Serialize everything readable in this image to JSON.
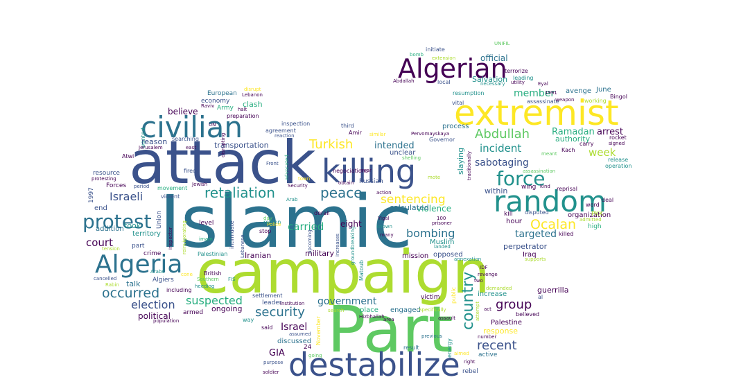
{
  "palette": {
    "purple": "#440154",
    "indigo": "#3b528b",
    "blue": "#2c728e",
    "teal": "#21918c",
    "green": "#28ae80",
    "lime": "#5ec962",
    "yellowgreen": "#addc30",
    "yellow": "#fde725"
  },
  "words": [
    {
      "text": "Islamic"
    },
    {
      "text": "campaign"
    },
    {
      "text": "Part"
    },
    {
      "text": "attack"
    },
    {
      "text": "destabilize"
    },
    {
      "text": "extremist"
    },
    {
      "text": "killing"
    },
    {
      "text": "civilian"
    },
    {
      "text": "random"
    },
    {
      "text": "Algerian"
    },
    {
      "text": "Algeria"
    },
    {
      "text": "country"
    },
    {
      "text": "force"
    },
    {
      "text": "protest"
    },
    {
      "text": "retaliation"
    },
    {
      "text": "peace"
    },
    {
      "text": "sentencing"
    },
    {
      "text": "Abdullah"
    },
    {
      "text": "Turkish"
    },
    {
      "text": "Ocalan"
    },
    {
      "text": "occurred"
    },
    {
      "text": "group"
    },
    {
      "text": "recent"
    },
    {
      "text": "security"
    },
    {
      "text": "suspected"
    },
    {
      "text": "election"
    },
    {
      "text": "bombing"
    },
    {
      "text": "government"
    },
    {
      "text": "incident"
    },
    {
      "text": "sabotaging"
    },
    {
      "text": "Israeli"
    },
    {
      "text": "court"
    },
    {
      "text": "carried"
    },
    {
      "text": "week"
    },
    {
      "text": "Israel"
    },
    {
      "text": "targeted"
    },
    {
      "text": "member"
    },
    {
      "text": "intended"
    },
    {
      "text": "Ramadan"
    },
    {
      "text": "arrest"
    },
    {
      "text": "GIA"
    },
    {
      "text": "believe"
    },
    {
      "text": "political"
    },
    {
      "text": "violence"
    },
    {
      "text": "official"
    },
    {
      "text": "Salvation"
    },
    {
      "text": "eight"
    },
    {
      "text": "took"
    },
    {
      "text": "authority"
    },
    {
      "text": "clash"
    },
    {
      "text": "ongoing"
    },
    {
      "text": "response"
    },
    {
      "text": "perpetrator"
    },
    {
      "text": "military"
    },
    {
      "text": "transportation"
    },
    {
      "text": "calculated"
    },
    {
      "text": "guerrilla"
    },
    {
      "text": "within"
    },
    {
      "text": "talk"
    },
    {
      "text": "Iranian"
    },
    {
      "text": "Palestine"
    },
    {
      "text": "reason"
    },
    {
      "text": "discussed"
    },
    {
      "text": "mission"
    },
    {
      "text": "opposed"
    },
    {
      "text": "avenge"
    },
    {
      "text": "June"
    },
    {
      "text": "organization"
    },
    {
      "text": "place"
    },
    {
      "text": "engaged"
    },
    {
      "text": "territory"
    },
    {
      "text": "slaying"
    },
    {
      "text": "Muslim"
    },
    {
      "text": "increase"
    },
    {
      "text": "process"
    },
    {
      "text": "hour"
    },
    {
      "text": "end"
    },
    {
      "text": "addition"
    },
    {
      "text": "Forces"
    },
    {
      "text": "Union"
    },
    {
      "text": "Iraq"
    },
    {
      "text": "economy"
    },
    {
      "text": "European"
    },
    {
      "text": "Army"
    },
    {
      "text": "unclear"
    },
    {
      "text": "resource"
    },
    {
      "text": "part"
    },
    {
      "text": "crime"
    },
    {
      "text": "level"
    },
    {
      "text": "leader"
    },
    {
      "text": "rebel"
    },
    {
      "text": "active"
    },
    {
      "text": "Algiers"
    },
    {
      "text": "victim"
    },
    {
      "text": "armed"
    },
    {
      "text": "PKK"
    },
    {
      "text": "kill"
    },
    {
      "text": "1997"
    },
    {
      "text": "wing"
    },
    {
      "text": "high"
    },
    {
      "text": "Russian"
    },
    {
      "text": "terrorize"
    },
    {
      "text": "initiate"
    },
    {
      "text": "leading"
    },
    {
      "text": "assassinate"
    },
    {
      "text": "vital"
    },
    {
      "text": "resumption"
    },
    {
      "text": "preparation"
    },
    {
      "text": "agreement"
    },
    {
      "text": "inspection"
    },
    {
      "text": "searching"
    },
    {
      "text": "movement"
    },
    {
      "text": "violent"
    },
    {
      "text": "British"
    },
    {
      "text": "including"
    },
    {
      "text": "settlement"
    },
    {
      "text": "way"
    },
    {
      "text": "said"
    },
    {
      "text": "stop"
    },
    {
      "text": "region"
    },
    {
      "text": "derail"
    },
    {
      "text": "Amir"
    },
    {
      "text": "third"
    },
    {
      "text": "negociations"
    },
    {
      "text": "Governor"
    },
    {
      "text": "disputed"
    },
    {
      "text": "killed"
    },
    {
      "text": "deal"
    },
    {
      "text": "word"
    },
    {
      "text": "reprisal"
    },
    {
      "text": "carry"
    },
    {
      "text": "Kach"
    },
    {
      "text": "rocket"
    },
    {
      "text": "release"
    },
    {
      "text": "operation"
    },
    {
      "text": "Bingol"
    },
    {
      "text": "working"
    },
    {
      "text": "1991"
    },
    {
      "text": "Eyal"
    },
    {
      "text": "local"
    },
    {
      "text": "Abdallah"
    },
    {
      "text": "utility"
    },
    {
      "text": "necessary"
    },
    {
      "text": "extension"
    },
    {
      "text": "bomb"
    },
    {
      "text": "UNIFIL"
    },
    {
      "text": "weapon"
    },
    {
      "text": "disrupt"
    },
    {
      "text": "Lebanon"
    },
    {
      "text": "Raviv"
    },
    {
      "text": "halt"
    },
    {
      "text": "wanted"
    },
    {
      "text": "Atwi"
    },
    {
      "text": "Jerusalem"
    },
    {
      "text": "east"
    },
    {
      "text": "fired"
    },
    {
      "text": "period"
    },
    {
      "text": "Jewish"
    },
    {
      "text": "protesting"
    },
    {
      "text": "cancelled"
    },
    {
      "text": "Rabin"
    },
    {
      "text": "Arabs"
    },
    {
      "text": "tension"
    },
    {
      "text": "heeding"
    },
    {
      "text": "population"
    },
    {
      "text": "Southern"
    },
    {
      "text": "purpose"
    },
    {
      "text": "soldier"
    },
    {
      "text": "going"
    },
    {
      "text": "result"
    },
    {
      "text": "previous"
    },
    {
      "text": "number"
    },
    {
      "text": "right"
    },
    {
      "text": "aimed"
    },
    {
      "text": "two"
    },
    {
      "text": "revenge"
    },
    {
      "text": "IDF"
    },
    {
      "text": "demanded"
    },
    {
      "text": "al"
    },
    {
      "text": "believed"
    },
    {
      "text": "annexation"
    },
    {
      "text": "supports"
    },
    {
      "text": "assassination"
    },
    {
      "text": "meant"
    },
    {
      "text": "kind"
    },
    {
      "text": "admitted"
    },
    {
      "text": "signed"
    },
    {
      "text": "many"
    },
    {
      "text": "Yigal"
    },
    {
      "text": "known"
    },
    {
      "text": "prisoner"
    },
    {
      "text": "100"
    },
    {
      "text": "landed"
    },
    {
      "text": "Hizbhallah"
    },
    {
      "text": "assault"
    },
    {
      "text": "search"
    },
    {
      "text": "Specifically"
    },
    {
      "text": "attempt"
    },
    {
      "text": "act"
    },
    {
      "text": "area"
    },
    {
      "text": "assumed"
    },
    {
      "text": "day"
    },
    {
      "text": "Police"
    },
    {
      "text": "imam"
    },
    {
      "text": "Palestinian"
    },
    {
      "text": "institution"
    },
    {
      "text": "shelling"
    },
    {
      "text": "Front"
    },
    {
      "text": "action"
    },
    {
      "text": "near"
    },
    {
      "text": "obtain"
    },
    {
      "text": "similar"
    },
    {
      "text": "Pervomayskaya"
    },
    {
      "text": "mote"
    },
    {
      "text": "Security"
    },
    {
      "text": "town"
    },
    {
      "text": "Arab"
    },
    {
      "text": "24"
    },
    {
      "text": "public"
    },
    {
      "text": "energy"
    },
    {
      "text": "upcoming"
    },
    {
      "text": "increases"
    },
    {
      "text": "groundbreaking"
    },
    {
      "text": "Matoub"
    },
    {
      "text": "traditionally"
    },
    {
      "text": "November"
    },
    {
      "text": "intimidate"
    },
    {
      "text": "reinvigorating"
    },
    {
      "text": "inspector"
    },
    {
      "text": "Lebanese"
    },
    {
      "text": "disrupting"
    },
    {
      "text": "advocated"
    },
    {
      "text": "reaction"
    },
    {
      "text": "UN"
    },
    {
      "text": "cone"
    },
    {
      "text": "FIS"
    }
  ]
}
